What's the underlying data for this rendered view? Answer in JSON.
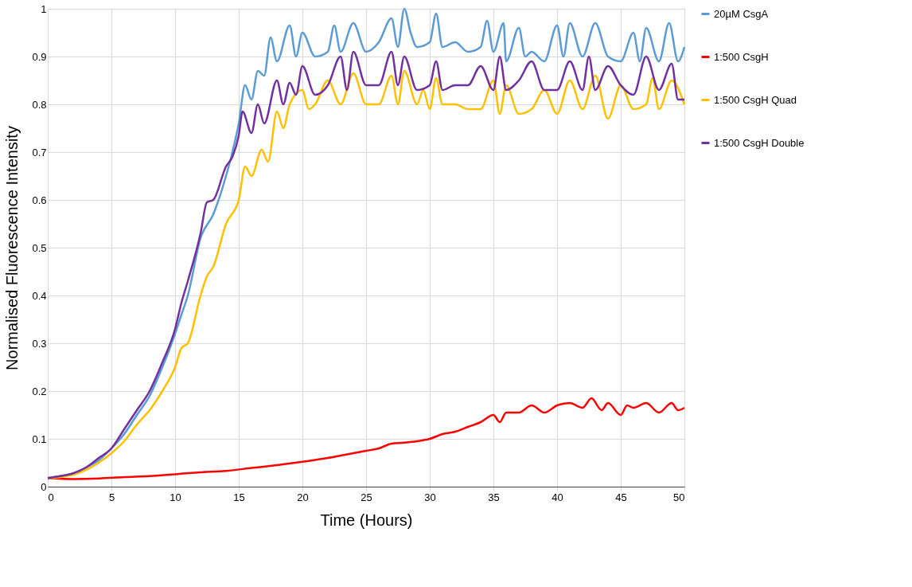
{
  "chart_data": {
    "type": "line",
    "xlabel": "Time (Hours)",
    "ylabel": "Normalised Fluorescence Intensity",
    "xlim": [
      0,
      50
    ],
    "xticks": [
      0,
      5,
      10,
      15,
      20,
      25,
      30,
      35,
      40,
      45,
      50
    ],
    "ylim": [
      0,
      1
    ],
    "yticks": [
      0,
      0.1,
      0.2,
      0.3,
      0.4,
      0.5,
      0.6,
      0.7,
      0.8,
      0.9,
      1
    ],
    "grid": true,
    "legend": "right",
    "marker": "none",
    "line_style": "solid",
    "series": [
      {
        "name": "20µM CsgA",
        "color": "#5b9bd5",
        "x": [
          0,
          1,
          2,
          3,
          4,
          5,
          6,
          7,
          8,
          9,
          10,
          10.5,
          11,
          12,
          13,
          14,
          14.5,
          15,
          15.5,
          16,
          16.5,
          17,
          17.5,
          18,
          19,
          19.5,
          20,
          21,
          22,
          22.5,
          23,
          24,
          25,
          26,
          27,
          27.5,
          28,
          28.5,
          29,
          30,
          30.5,
          31,
          32,
          33,
          34,
          34.5,
          35,
          35.8,
          36,
          37,
          37.5,
          38,
          39,
          40,
          40.5,
          41,
          42,
          43,
          44,
          45,
          46,
          46.5,
          47,
          48,
          48.8,
          49.5,
          50
        ],
        "values": [
          0.018,
          0.022,
          0.028,
          0.04,
          0.055,
          0.08,
          0.11,
          0.15,
          0.19,
          0.25,
          0.32,
          0.36,
          0.4,
          0.52,
          0.57,
          0.65,
          0.7,
          0.76,
          0.84,
          0.81,
          0.87,
          0.86,
          0.94,
          0.89,
          0.965,
          0.9,
          0.95,
          0.9,
          0.91,
          0.965,
          0.91,
          0.97,
          0.91,
          0.93,
          0.98,
          0.92,
          1.0,
          0.95,
          0.92,
          0.93,
          0.99,
          0.92,
          0.93,
          0.91,
          0.92,
          0.975,
          0.91,
          0.97,
          0.89,
          0.96,
          0.9,
          0.91,
          0.89,
          0.965,
          0.9,
          0.97,
          0.9,
          0.97,
          0.9,
          0.89,
          0.95,
          0.89,
          0.96,
          0.89,
          0.97,
          0.89,
          0.92
        ]
      },
      {
        "name": "1:500 CsgH",
        "color": "#ff0000",
        "x": [
          0,
          2,
          4,
          6,
          8,
          10,
          12,
          14,
          16,
          18,
          20,
          22,
          23,
          24,
          25,
          26,
          27,
          28,
          29,
          30,
          31,
          32,
          33,
          34,
          35,
          35.5,
          36,
          37,
          38,
          39,
          40,
          41,
          42,
          42.7,
          43.5,
          44,
          45,
          45.5,
          46,
          47,
          48,
          49,
          49.5,
          50
        ],
        "values": [
          0.018,
          0.016,
          0.017,
          0.02,
          0.022,
          0.026,
          0.03,
          0.033,
          0.039,
          0.045,
          0.052,
          0.06,
          0.065,
          0.07,
          0.075,
          0.08,
          0.09,
          0.092,
          0.095,
          0.1,
          0.11,
          0.115,
          0.125,
          0.135,
          0.15,
          0.135,
          0.155,
          0.155,
          0.17,
          0.155,
          0.17,
          0.175,
          0.165,
          0.185,
          0.16,
          0.175,
          0.15,
          0.17,
          0.165,
          0.175,
          0.155,
          0.175,
          0.16,
          0.165
        ]
      },
      {
        "name": "1:500 CsgH Quad",
        "color": "#ffc000",
        "x": [
          0,
          1,
          2,
          3,
          4,
          5,
          6,
          7,
          8,
          9,
          10,
          10.5,
          11,
          12,
          12.5,
          13,
          14,
          15,
          15.5,
          16,
          16.8,
          17.3,
          18,
          18.5,
          19,
          20,
          20.5,
          21,
          22,
          23,
          24,
          25,
          26,
          27,
          27.5,
          28,
          29,
          29.5,
          30,
          30.5,
          31,
          32,
          33,
          34,
          35,
          35.5,
          36,
          37,
          38,
          39,
          40,
          41,
          42,
          43,
          44,
          45,
          46,
          47,
          47.5,
          48,
          49,
          50
        ],
        "values": [
          0.018,
          0.02,
          0.025,
          0.035,
          0.05,
          0.07,
          0.095,
          0.13,
          0.16,
          0.2,
          0.25,
          0.29,
          0.3,
          0.4,
          0.44,
          0.46,
          0.55,
          0.6,
          0.67,
          0.65,
          0.705,
          0.68,
          0.785,
          0.75,
          0.8,
          0.83,
          0.79,
          0.8,
          0.85,
          0.8,
          0.865,
          0.8,
          0.8,
          0.86,
          0.8,
          0.87,
          0.8,
          0.83,
          0.79,
          0.855,
          0.8,
          0.8,
          0.79,
          0.79,
          0.85,
          0.78,
          0.84,
          0.78,
          0.79,
          0.83,
          0.78,
          0.85,
          0.79,
          0.86,
          0.77,
          0.84,
          0.79,
          0.8,
          0.855,
          0.79,
          0.85,
          0.8
        ]
      },
      {
        "name": "1:500 CsgH Double",
        "color": "#7030a0",
        "x": [
          0,
          1,
          2,
          3,
          4,
          5,
          6,
          7,
          8,
          9,
          10,
          10.5,
          11,
          12,
          12.5,
          13,
          14,
          14.5,
          15,
          15.3,
          16,
          16.5,
          17,
          18,
          18.5,
          19,
          19.5,
          20,
          21,
          22,
          23,
          23.5,
          24,
          25,
          26,
          27,
          27.5,
          28,
          29,
          30,
          30.5,
          31,
          32,
          33,
          34,
          35,
          35.5,
          36,
          37,
          38,
          39,
          40,
          41,
          42,
          42.5,
          43,
          44,
          45,
          46,
          47,
          48,
          49,
          49.5,
          50
        ],
        "values": [
          0.018,
          0.022,
          0.028,
          0.04,
          0.06,
          0.08,
          0.12,
          0.16,
          0.2,
          0.26,
          0.33,
          0.385,
          0.43,
          0.53,
          0.595,
          0.6,
          0.67,
          0.69,
          0.735,
          0.785,
          0.74,
          0.8,
          0.76,
          0.85,
          0.8,
          0.845,
          0.82,
          0.88,
          0.82,
          0.84,
          0.9,
          0.83,
          0.91,
          0.84,
          0.84,
          0.91,
          0.84,
          0.9,
          0.83,
          0.84,
          0.89,
          0.83,
          0.84,
          0.84,
          0.88,
          0.83,
          0.9,
          0.83,
          0.85,
          0.89,
          0.83,
          0.83,
          0.89,
          0.83,
          0.9,
          0.83,
          0.88,
          0.84,
          0.82,
          0.9,
          0.83,
          0.885,
          0.81,
          0.81
        ]
      }
    ]
  }
}
